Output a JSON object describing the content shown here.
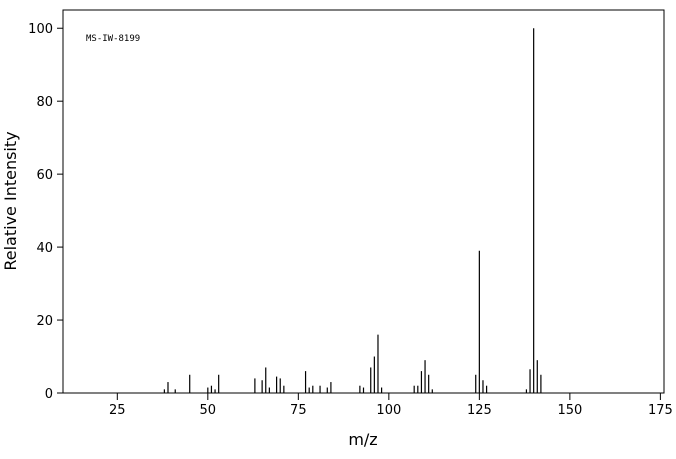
{
  "chart_data": {
    "type": "bar",
    "annotation": "MS-IW-8199",
    "x_label": "m/z",
    "y_label": "Relative Intensity",
    "x": [
      38,
      39,
      41,
      45,
      50,
      51,
      52,
      53,
      63,
      65,
      66,
      67,
      69,
      70,
      71,
      77,
      78,
      79,
      81,
      83,
      84,
      92,
      93,
      95,
      96,
      97,
      98,
      107,
      108,
      109,
      110,
      111,
      112,
      124,
      125,
      126,
      127,
      138,
      139,
      140,
      141,
      142
    ],
    "values": [
      1,
      3,
      1,
      5,
      1.5,
      2,
      1,
      5,
      4,
      3.5,
      7,
      1.5,
      4.5,
      4,
      2,
      6,
      1.5,
      2,
      2,
      1.5,
      3,
      2,
      1.5,
      7,
      10,
      16,
      1.5,
      2,
      2,
      6,
      9,
      5,
      1,
      5,
      39,
      3.5,
      2,
      1,
      6.5,
      100,
      9,
      5
    ],
    "color": "#000000",
    "xlim": [
      10,
      176
    ],
    "xticks": [
      25,
      50,
      75,
      100,
      125,
      150,
      175
    ],
    "ylim": [
      0,
      105
    ],
    "yticks": [
      0,
      20,
      40,
      60,
      80,
      100
    ]
  }
}
